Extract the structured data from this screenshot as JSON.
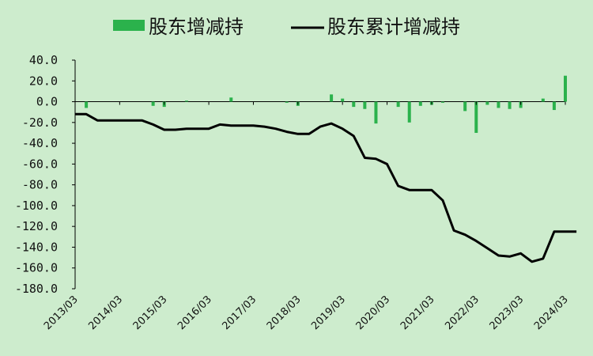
{
  "chart_data": {
    "type": "bar+line",
    "legend": {
      "position": "top",
      "entries": [
        "股东增减持",
        "股东累计增减持"
      ]
    },
    "colors": {
      "bar": "#2bb24c",
      "line": "#000000",
      "background": "#cdeccd"
    },
    "y_ticks": [
      "40.0",
      "20.0",
      "0.0",
      "-20.0",
      "-40.0",
      "-60.0",
      "-80.0",
      "-100.0",
      "-120.0",
      "-140.0",
      "-160.0",
      "-180.0"
    ],
    "ylim": [
      -180,
      40
    ],
    "x_ticks": [
      "2013/03",
      "2014/03",
      "2015/03",
      "2016/03",
      "2017/03",
      "2018/03",
      "2019/03",
      "2020/03",
      "2021/03",
      "2022/03",
      "2023/03",
      "2024/03"
    ],
    "x_range": [
      2013.0,
      2024.0
    ],
    "grid": false,
    "bars": {
      "name": "股东增减持",
      "x": [
        2013.25,
        2014.75,
        2015.0,
        2015.5,
        2016.5,
        2017.75,
        2018.0,
        2018.75,
        2019.0,
        2019.25,
        2019.5,
        2019.75,
        2020.25,
        2020.5,
        2020.75,
        2021.0,
        2021.25,
        2021.75,
        2022.0,
        2022.25,
        2022.5,
        2022.75,
        2023.0,
        2023.5,
        2023.75,
        2024.0
      ],
      "values": [
        -6,
        -4,
        -5,
        1,
        4,
        -1,
        -4,
        7,
        3,
        -5,
        -7,
        -21,
        -5,
        -20,
        -4,
        -3,
        -1,
        -9,
        -30,
        -3,
        -6,
        -7,
        -6,
        3,
        -8,
        25
      ]
    },
    "line": {
      "name": "股东累计增减持",
      "x": [
        2013.0,
        2013.25,
        2013.5,
        2013.75,
        2014.0,
        2014.25,
        2014.5,
        2014.75,
        2015.0,
        2015.25,
        2015.5,
        2015.75,
        2016.0,
        2016.25,
        2016.5,
        2016.75,
        2017.0,
        2017.25,
        2017.5,
        2017.75,
        2018.0,
        2018.25,
        2018.5,
        2018.75,
        2019.0,
        2019.25,
        2019.5,
        2019.75,
        2020.0,
        2020.25,
        2020.5,
        2020.75,
        2021.0,
        2021.25,
        2021.5,
        2021.75,
        2022.0,
        2022.25,
        2022.5,
        2022.75,
        2023.0,
        2023.25,
        2023.5,
        2023.75,
        2024.0,
        2024.25
      ],
      "values": [
        -12,
        -12,
        -18,
        -18,
        -18,
        -18,
        -18,
        -22,
        -27,
        -27,
        -26,
        -26,
        -26,
        -22,
        -23,
        -23,
        -23,
        -24,
        -26,
        -29,
        -31,
        -31,
        -24,
        -21,
        -26,
        -33,
        -54,
        -55,
        -60,
        -81,
        -85,
        -85,
        -85,
        -95,
        -124,
        -128,
        -134,
        -141,
        -148,
        -149,
        -146,
        -154,
        -151,
        -125,
        -125,
        -125
      ]
    }
  }
}
